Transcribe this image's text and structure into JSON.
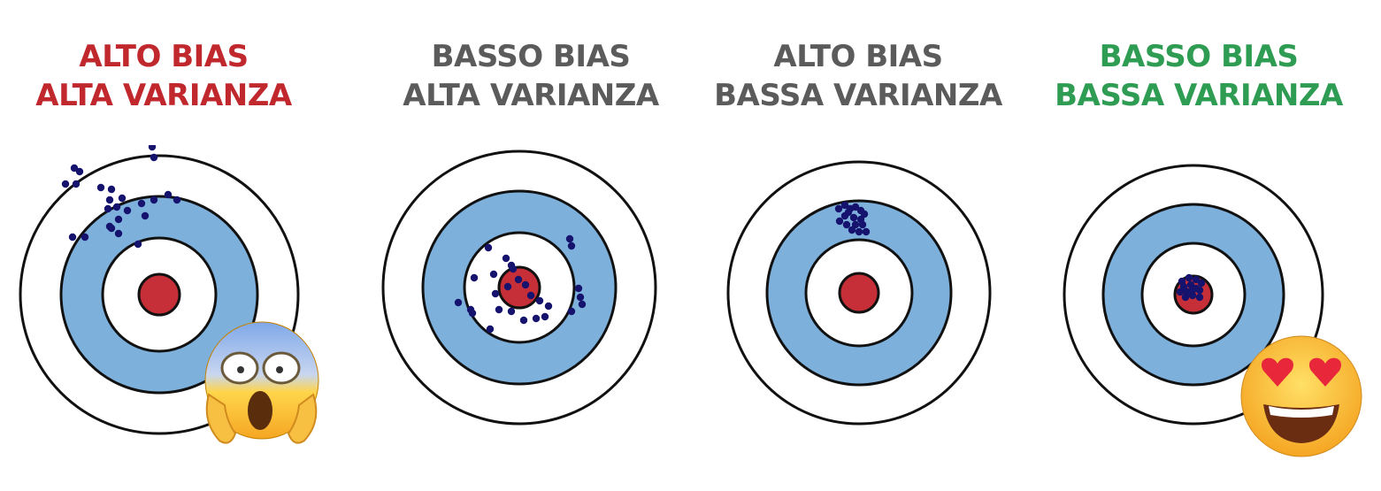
{
  "colors": {
    "red_title": "#c0282d",
    "gray_title": "#5b5b5b",
    "green_title": "#2e9c52",
    "ring_blue": "#7eb0dc",
    "bullseye_red": "#c62f37",
    "dot_navy": "#15136e"
  },
  "panels": [
    {
      "line1": "ALTO BIAS",
      "line2": "ALTA VARIANZA",
      "title_color": "red_title",
      "emoji": "face-screaming-in-fear"
    },
    {
      "line1": "BASSO BIAS",
      "line2": "ALTA VARIANZA",
      "title_color": "gray_title",
      "emoji": ""
    },
    {
      "line1": "ALTO BIAS",
      "line2": "BASSA VARIANZA",
      "title_color": "gray_title",
      "emoji": ""
    },
    {
      "line1": "BASSO BIAS",
      "line2": "BASSA VARIANZA",
      "title_color": "green_title",
      "emoji": "smiling-face-with-heart-eyes"
    }
  ]
}
